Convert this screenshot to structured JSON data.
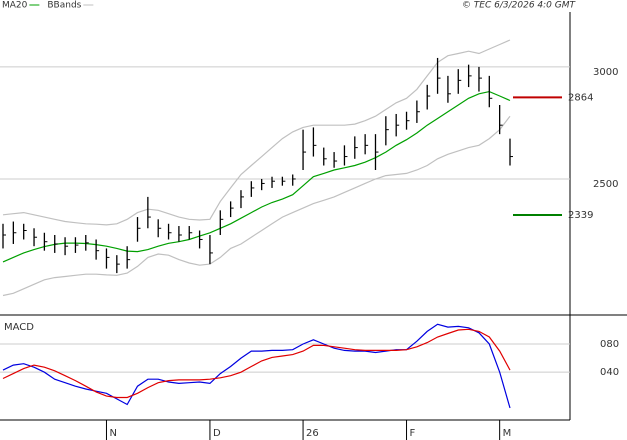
{
  "chart_data": [
    {
      "type": "ohlc",
      "stamp": "© TEC 6/3/2026 4:0 GMT",
      "categories": [
        null,
        null,
        null,
        null,
        null,
        null,
        null,
        null,
        null,
        null,
        "N",
        null,
        null,
        null,
        null,
        null,
        null,
        null,
        null,
        null,
        "D",
        null,
        null,
        null,
        null,
        null,
        null,
        null,
        null,
        "26",
        null,
        null,
        null,
        null,
        null,
        null,
        null,
        null,
        null,
        "F",
        null,
        null,
        null,
        null,
        null,
        null,
        null,
        null,
        "M",
        null
      ],
      "high": [
        2300,
        2310,
        2300,
        2280,
        2260,
        2250,
        2240,
        2240,
        2250,
        2230,
        2190,
        2160,
        2200,
        2330,
        2420,
        2320,
        2300,
        2290,
        2290,
        2270,
        2250,
        2360,
        2400,
        2450,
        2490,
        2500,
        2510,
        2510,
        2520,
        2720,
        2730,
        2640,
        2620,
        2650,
        2690,
        2700,
        2700,
        2780,
        2790,
        2800,
        2850,
        2920,
        3040,
        2960,
        2990,
        3010,
        3000,
        2960,
        2830,
        2680
      ],
      "low": [
        2190,
        2210,
        2230,
        2200,
        2180,
        2170,
        2160,
        2170,
        2180,
        2140,
        2100,
        2080,
        2100,
        2220,
        2280,
        2240,
        2230,
        2220,
        2230,
        2190,
        2120,
        2250,
        2330,
        2370,
        2420,
        2450,
        2460,
        2470,
        2470,
        2540,
        2600,
        2560,
        2550,
        2560,
        2590,
        2610,
        2540,
        2650,
        2690,
        2720,
        2750,
        2810,
        2880,
        2840,
        2880,
        2910,
        2890,
        2820,
        2700,
        2560
      ],
      "close": [
        2250,
        2260,
        2270,
        2240,
        2220,
        2210,
        2200,
        2205,
        2215,
        2180,
        2150,
        2120,
        2140,
        2280,
        2330,
        2280,
        2260,
        2250,
        2260,
        2230,
        2170,
        2320,
        2370,
        2420,
        2460,
        2480,
        2490,
        2490,
        2500,
        2620,
        2650,
        2590,
        2580,
        2600,
        2640,
        2650,
        2620,
        2720,
        2740,
        2760,
        2800,
        2870,
        2950,
        2880,
        2940,
        2960,
        2950,
        2860,
        2740,
        2600
      ],
      "bar_color": "#000000",
      "series": [
        {
          "name": "MA20",
          "color": "#00a000",
          "values": [
            2130,
            2150,
            2170,
            2185,
            2198,
            2208,
            2214,
            2214,
            2212,
            2207,
            2200,
            2190,
            2178,
            2176,
            2185,
            2200,
            2213,
            2220,
            2230,
            2245,
            2260,
            2280,
            2300,
            2325,
            2350,
            2375,
            2395,
            2410,
            2430,
            2470,
            2510,
            2525,
            2540,
            2550,
            2560,
            2575,
            2595,
            2620,
            2650,
            2675,
            2705,
            2740,
            2770,
            2800,
            2830,
            2860,
            2880,
            2890,
            2870,
            2850
          ]
        },
        {
          "name": "BBands",
          "color": "#c0c0c0",
          "values": [
            2340,
            2345,
            2350,
            2340,
            2330,
            2320,
            2310,
            2305,
            2300,
            2298,
            2295,
            2300,
            2320,
            2350,
            2365,
            2360,
            2345,
            2330,
            2320,
            2317,
            2320,
            2400,
            2460,
            2520,
            2560,
            2600,
            2640,
            2680,
            2710,
            2730,
            2740,
            2740,
            2740,
            2740,
            2745,
            2760,
            2780,
            2810,
            2840,
            2860,
            2900,
            2960,
            3020,
            3050,
            3060,
            3070,
            3060,
            3080,
            3100,
            3120
          ],
          "lower": [
            1980,
            1990,
            2010,
            2030,
            2050,
            2060,
            2065,
            2070,
            2075,
            2075,
            2072,
            2070,
            2080,
            2110,
            2150,
            2165,
            2160,
            2140,
            2125,
            2115,
            2120,
            2150,
            2190,
            2210,
            2240,
            2270,
            2300,
            2330,
            2350,
            2370,
            2390,
            2405,
            2420,
            2440,
            2460,
            2480,
            2500,
            2515,
            2520,
            2525,
            2540,
            2560,
            2590,
            2610,
            2625,
            2640,
            2650,
            2680,
            2720,
            2780
          ]
        }
      ],
      "levels": [
        {
          "value": 2864,
          "color": "#c00000"
        },
        {
          "value": 2339,
          "color": "#008000"
        }
      ],
      "ylim": [
        1893,
        3245
      ],
      "yticks": [
        2500,
        3000
      ]
    },
    {
      "type": "line",
      "title": "MACD",
      "series": [
        {
          "color": "#0000e0",
          "values": [
            43,
            50,
            52,
            47,
            40,
            30,
            25,
            20,
            16,
            13,
            10,
            2,
            -6,
            20,
            30,
            30,
            26,
            24,
            25,
            26,
            24,
            38,
            48,
            60,
            70,
            70,
            71,
            71,
            72,
            80,
            86,
            80,
            74,
            71,
            70,
            70,
            68,
            70,
            72,
            72,
            84,
            98,
            108,
            104,
            105,
            103,
            96,
            80,
            40,
            -11
          ]
        },
        {
          "color": "#e00000",
          "values": [
            31,
            38,
            45,
            50,
            47,
            42,
            35,
            28,
            20,
            12,
            6,
            4,
            4,
            10,
            18,
            25,
            28,
            29,
            29,
            29,
            30,
            32,
            35,
            40,
            48,
            56,
            61,
            63,
            65,
            70,
            78,
            78,
            76,
            74,
            72,
            71,
            71,
            71,
            71,
            72,
            76,
            82,
            90,
            95,
            100,
            101,
            98,
            90,
            70,
            43
          ]
        }
      ],
      "ylim": [
        -28,
        117
      ],
      "yticks": [
        {
          "value": 40,
          "label": "040"
        },
        {
          "value": 80,
          "label": "080"
        }
      ]
    }
  ]
}
